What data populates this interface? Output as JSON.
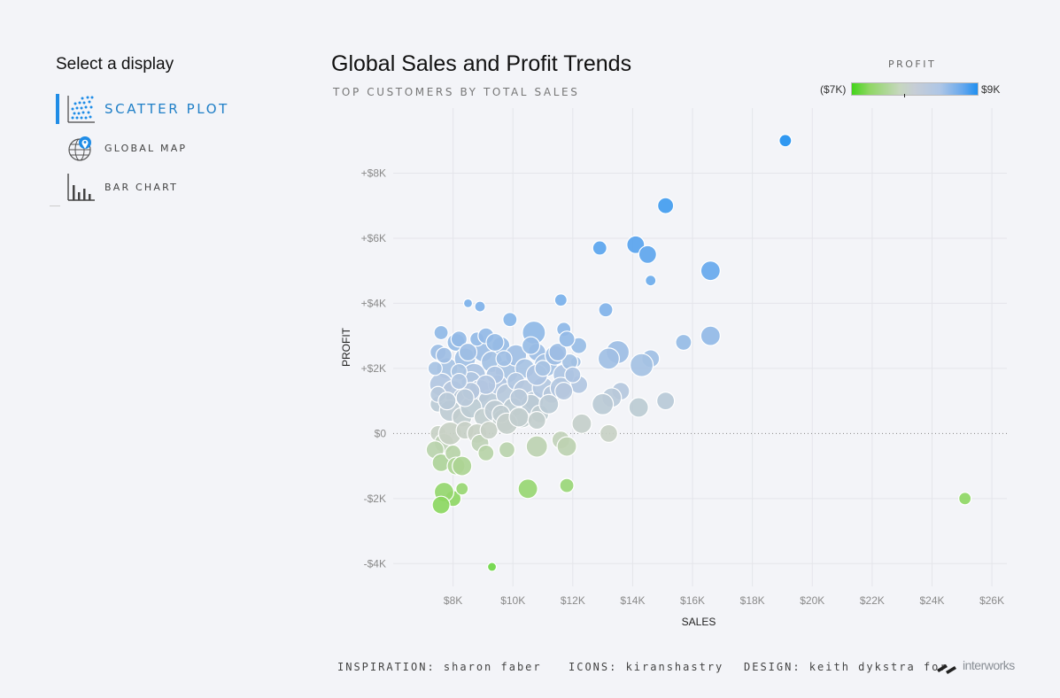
{
  "sidebar": {
    "title": "Select a display",
    "items": [
      {
        "label": "SCATTER PLOT",
        "icon": "scatter-plot-icon",
        "active": true
      },
      {
        "label": "GLOBAL MAP",
        "icon": "globe-icon",
        "active": false
      },
      {
        "label": "BAR CHART",
        "icon": "bar-chart-icon",
        "active": false
      }
    ]
  },
  "header": {
    "title": "Global Sales and Profit Trends",
    "subtitle": "TOP CUSTOMERS BY TOTAL SALES"
  },
  "legend": {
    "title": "PROFIT",
    "min_label": "($7K)",
    "max_label": "$9K",
    "colors": [
      "#43d41a",
      "#c6cdd6",
      "#1f8ff0"
    ]
  },
  "footer": {
    "inspiration": "INSPIRATION: sharon faber",
    "icons": "ICONS: kiranshastry",
    "design": "DESIGN: keith dykstra for",
    "logo_text": "interworks"
  },
  "chart_data": {
    "type": "scatter",
    "title": "Global Sales and Profit Trends",
    "subtitle": "TOP CUSTOMERS BY TOTAL SALES",
    "xlabel": "SALES",
    "ylabel": "PROFIT",
    "xlim": [
      6000,
      26500
    ],
    "ylim": [
      -4700,
      10000
    ],
    "x_ticks": [
      8000,
      10000,
      12000,
      14000,
      16000,
      18000,
      20000,
      22000,
      24000,
      26000
    ],
    "x_tick_labels": [
      "$8K",
      "$10K",
      "$12K",
      "$14K",
      "$16K",
      "$18K",
      "$20K",
      "$22K",
      "$24K",
      "$26K"
    ],
    "y_ticks": [
      -4000,
      -2000,
      0,
      2000,
      4000,
      6000,
      8000
    ],
    "y_tick_labels": [
      "-$4K",
      "-$2K",
      "$0",
      "+$2K",
      "+$4K",
      "+$6K",
      "+$8K"
    ],
    "grid": true,
    "zero_line": "dotted",
    "size_encoding": "relative bubble size",
    "color_encoding": "PROFIT",
    "color_range": [
      -7000,
      9000
    ],
    "points": [
      {
        "x": 19100,
        "y": 9000,
        "s": 7
      },
      {
        "x": 15100,
        "y": 7000,
        "s": 9
      },
      {
        "x": 14100,
        "y": 5800,
        "s": 10
      },
      {
        "x": 12900,
        "y": 5700,
        "s": 8
      },
      {
        "x": 14500,
        "y": 5500,
        "s": 10
      },
      {
        "x": 16600,
        "y": 5000,
        "s": 11
      },
      {
        "x": 14600,
        "y": 4700,
        "s": 6
      },
      {
        "x": 13100,
        "y": 3800,
        "s": 8
      },
      {
        "x": 11600,
        "y": 4100,
        "s": 7
      },
      {
        "x": 8500,
        "y": 4000,
        "s": 5
      },
      {
        "x": 8900,
        "y": 3900,
        "s": 6
      },
      {
        "x": 9900,
        "y": 3500,
        "s": 8
      },
      {
        "x": 7600,
        "y": 3100,
        "s": 8
      },
      {
        "x": 10700,
        "y": 3100,
        "s": 13
      },
      {
        "x": 11700,
        "y": 3200,
        "s": 8
      },
      {
        "x": 16600,
        "y": 3000,
        "s": 11
      },
      {
        "x": 15700,
        "y": 2800,
        "s": 9
      },
      {
        "x": 13500,
        "y": 2500,
        "s": 13
      },
      {
        "x": 12200,
        "y": 2700,
        "s": 9
      },
      {
        "x": 14600,
        "y": 2300,
        "s": 10
      },
      {
        "x": 13200,
        "y": 2300,
        "s": 12
      },
      {
        "x": 14300,
        "y": 2100,
        "s": 13
      },
      {
        "x": 12100,
        "y": 2200,
        "s": 6
      },
      {
        "x": 12200,
        "y": 1500,
        "s": 10
      },
      {
        "x": 13600,
        "y": 1300,
        "s": 10
      },
      {
        "x": 13300,
        "y": 1100,
        "s": 11
      },
      {
        "x": 13000,
        "y": 900,
        "s": 12
      },
      {
        "x": 15100,
        "y": 1000,
        "s": 10
      },
      {
        "x": 14200,
        "y": 800,
        "s": 11
      },
      {
        "x": 12300,
        "y": 300,
        "s": 11
      },
      {
        "x": 13200,
        "y": 0,
        "s": 10
      },
      {
        "x": 7500,
        "y": 2500,
        "s": 9
      },
      {
        "x": 7800,
        "y": 2000,
        "s": 12
      },
      {
        "x": 8100,
        "y": 2800,
        "s": 10
      },
      {
        "x": 8400,
        "y": 2300,
        "s": 12
      },
      {
        "x": 8700,
        "y": 1800,
        "s": 13
      },
      {
        "x": 9000,
        "y": 2500,
        "s": 11
      },
      {
        "x": 9300,
        "y": 2200,
        "s": 12
      },
      {
        "x": 9600,
        "y": 2700,
        "s": 10
      },
      {
        "x": 9800,
        "y": 1900,
        "s": 13
      },
      {
        "x": 10100,
        "y": 2400,
        "s": 12
      },
      {
        "x": 10400,
        "y": 2000,
        "s": 11
      },
      {
        "x": 10800,
        "y": 2500,
        "s": 10
      },
      {
        "x": 11100,
        "y": 2100,
        "s": 13
      },
      {
        "x": 11400,
        "y": 2400,
        "s": 11
      },
      {
        "x": 11700,
        "y": 1800,
        "s": 12
      },
      {
        "x": 11900,
        "y": 2200,
        "s": 9
      },
      {
        "x": 7600,
        "y": 1500,
        "s": 13
      },
      {
        "x": 8000,
        "y": 1300,
        "s": 12
      },
      {
        "x": 8300,
        "y": 1100,
        "s": 10
      },
      {
        "x": 8600,
        "y": 1600,
        "s": 11
      },
      {
        "x": 8900,
        "y": 1300,
        "s": 13
      },
      {
        "x": 9200,
        "y": 1000,
        "s": 12
      },
      {
        "x": 9500,
        "y": 1500,
        "s": 11
      },
      {
        "x": 9800,
        "y": 1200,
        "s": 12
      },
      {
        "x": 10100,
        "y": 1600,
        "s": 10
      },
      {
        "x": 10400,
        "y": 1300,
        "s": 13
      },
      {
        "x": 10700,
        "y": 1000,
        "s": 11
      },
      {
        "x": 11000,
        "y": 1400,
        "s": 12
      },
      {
        "x": 11300,
        "y": 1200,
        "s": 10
      },
      {
        "x": 11600,
        "y": 1400,
        "s": 12
      },
      {
        "x": 7500,
        "y": 900,
        "s": 9
      },
      {
        "x": 7900,
        "y": 700,
        "s": 12
      },
      {
        "x": 8300,
        "y": 500,
        "s": 11
      },
      {
        "x": 8600,
        "y": 800,
        "s": 12
      },
      {
        "x": 9000,
        "y": 500,
        "s": 10
      },
      {
        "x": 9400,
        "y": 700,
        "s": 12
      },
      {
        "x": 9700,
        "y": 400,
        "s": 13
      },
      {
        "x": 10000,
        "y": 800,
        "s": 11
      },
      {
        "x": 10300,
        "y": 500,
        "s": 12
      },
      {
        "x": 10600,
        "y": 900,
        "s": 11
      },
      {
        "x": 10900,
        "y": 600,
        "s": 10
      },
      {
        "x": 11200,
        "y": 900,
        "s": 11
      },
      {
        "x": 7400,
        "y": 2000,
        "s": 8
      },
      {
        "x": 7700,
        "y": 2400,
        "s": 9
      },
      {
        "x": 8200,
        "y": 2900,
        "s": 9
      },
      {
        "x": 8500,
        "y": 2500,
        "s": 10
      },
      {
        "x": 8800,
        "y": 2900,
        "s": 8
      },
      {
        "x": 9100,
        "y": 3000,
        "s": 9
      },
      {
        "x": 9400,
        "y": 2800,
        "s": 10
      },
      {
        "x": 9700,
        "y": 2300,
        "s": 9
      },
      {
        "x": 10600,
        "y": 2700,
        "s": 10
      },
      {
        "x": 11500,
        "y": 2500,
        "s": 10
      },
      {
        "x": 11800,
        "y": 2900,
        "s": 9
      },
      {
        "x": 12000,
        "y": 1800,
        "s": 9
      },
      {
        "x": 11700,
        "y": 1300,
        "s": 10
      },
      {
        "x": 10800,
        "y": 1800,
        "s": 12
      },
      {
        "x": 9400,
        "y": 1800,
        "s": 10
      },
      {
        "x": 8200,
        "y": 1900,
        "s": 9
      },
      {
        "x": 7500,
        "y": 1200,
        "s": 9
      },
      {
        "x": 9100,
        "y": 1500,
        "s": 11
      },
      {
        "x": 10200,
        "y": 1100,
        "s": 10
      },
      {
        "x": 11000,
        "y": 2000,
        "s": 9
      },
      {
        "x": 8600,
        "y": 1300,
        "s": 10
      },
      {
        "x": 7800,
        "y": 1000,
        "s": 10
      },
      {
        "x": 8200,
        "y": 1600,
        "s": 9
      },
      {
        "x": 8400,
        "y": 1100,
        "s": 10
      },
      {
        "x": 7500,
        "y": 0,
        "s": 9
      },
      {
        "x": 7700,
        "y": -300,
        "s": 11
      },
      {
        "x": 7400,
        "y": -500,
        "s": 10
      },
      {
        "x": 7600,
        "y": -900,
        "s": 10
      },
      {
        "x": 7900,
        "y": 0,
        "s": 13
      },
      {
        "x": 8000,
        "y": -600,
        "s": 9
      },
      {
        "x": 8100,
        "y": -1000,
        "s": 10
      },
      {
        "x": 8300,
        "y": -1000,
        "s": 11
      },
      {
        "x": 8400,
        "y": 100,
        "s": 10
      },
      {
        "x": 8800,
        "y": 0,
        "s": 11
      },
      {
        "x": 8900,
        "y": -300,
        "s": 10
      },
      {
        "x": 9100,
        "y": -600,
        "s": 9
      },
      {
        "x": 9200,
        "y": 100,
        "s": 10
      },
      {
        "x": 9600,
        "y": 600,
        "s": 10
      },
      {
        "x": 9800,
        "y": 300,
        "s": 12
      },
      {
        "x": 9800,
        "y": -500,
        "s": 9
      },
      {
        "x": 10200,
        "y": 500,
        "s": 11
      },
      {
        "x": 10800,
        "y": 400,
        "s": 10
      },
      {
        "x": 10800,
        "y": -400,
        "s": 12
      },
      {
        "x": 11600,
        "y": -200,
        "s": 10
      },
      {
        "x": 11800,
        "y": -400,
        "s": 11
      },
      {
        "x": 8000,
        "y": -2000,
        "s": 9
      },
      {
        "x": 8300,
        "y": -1700,
        "s": 7
      },
      {
        "x": 7700,
        "y": -1800,
        "s": 11
      },
      {
        "x": 7600,
        "y": -2200,
        "s": 10
      },
      {
        "x": 10500,
        "y": -1700,
        "s": 11
      },
      {
        "x": 11800,
        "y": -1600,
        "s": 8
      },
      {
        "x": 25100,
        "y": -2000,
        "s": 7
      },
      {
        "x": 9300,
        "y": -4100,
        "s": 5
      }
    ]
  }
}
